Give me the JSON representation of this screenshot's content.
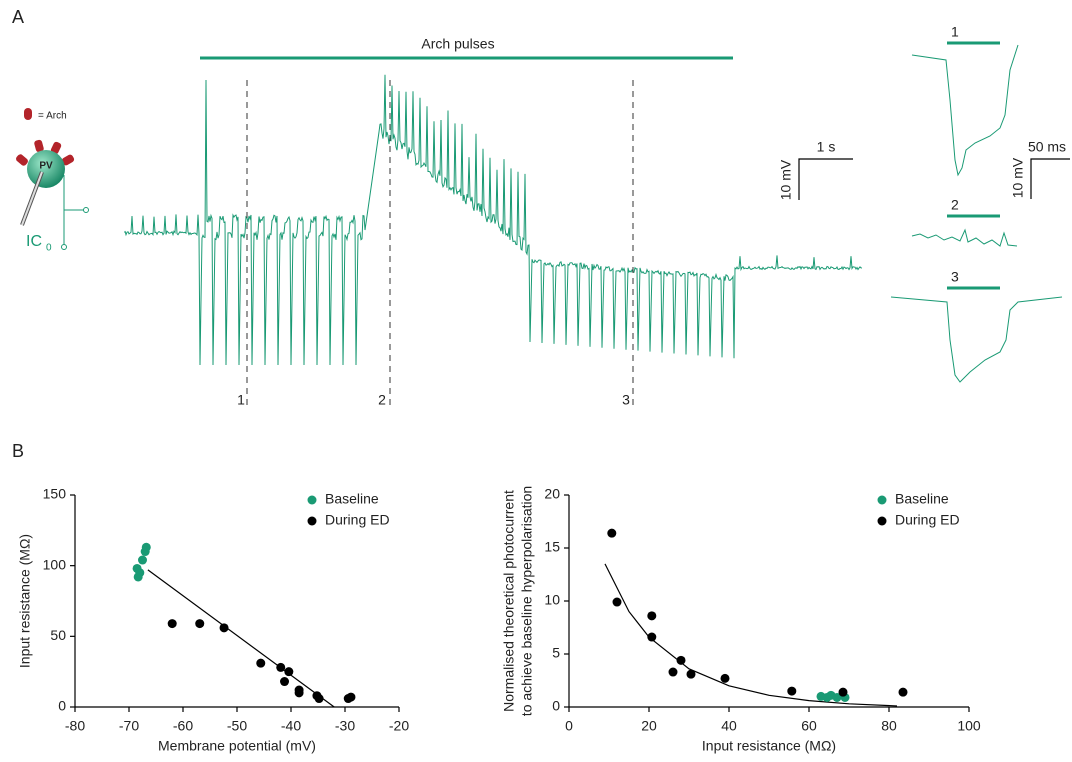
{
  "panel_a": {
    "label": "A",
    "stimulus_label": "Arch pulses",
    "legend_label": "= Arch",
    "cell_label": "PV",
    "recording_mode": "IC",
    "recording_mode_subscript": "0",
    "scale_bar_main": {
      "time": "1 s",
      "voltage": "10 mV"
    },
    "scale_bar_inset": {
      "time": "50 ms",
      "voltage": "10 mV"
    },
    "timepoints": [
      "1",
      "2",
      "3"
    ],
    "inset_labels": [
      "1",
      "2",
      "3"
    ]
  },
  "panel_b_label": "B",
  "chart_data": [
    {
      "type": "scatter",
      "xlabel": "Membrane potential (mV)",
      "ylabel": [
        "Input resistance (MΩ)"
      ],
      "xlim": [
        -80,
        -20
      ],
      "xticks": [
        -80,
        -70,
        -60,
        -50,
        -40,
        -30,
        -20
      ],
      "ylim": [
        0,
        150
      ],
      "yticks": [
        0,
        50,
        100,
        150
      ],
      "legend": "upper right",
      "series": [
        {
          "name": "Baseline",
          "color": "#1a9a74",
          "x": [
            -68.5,
            -68.3,
            -68.0,
            -67.5,
            -67.0,
            -66.8
          ],
          "values": [
            98,
            92,
            95,
            104,
            110,
            113
          ]
        },
        {
          "name": "During ED",
          "color": "#000000",
          "x": [
            -62.0,
            -56.9,
            -52.4,
            -45.6,
            -41.9,
            -41.2,
            -40.4,
            -38.5,
            -38.5,
            -35.2,
            -34.8,
            -29.4,
            -28.9
          ],
          "values": [
            59,
            59,
            56,
            31,
            28,
            18,
            25,
            12,
            10,
            8,
            6,
            6,
            7
          ]
        }
      ],
      "fit": {
        "color": "#000000",
        "x": [
          -66.5,
          -32.0
        ],
        "values": [
          97,
          0
        ]
      }
    },
    {
      "type": "scatter",
      "xlabel": "Input resistance (MΩ)",
      "ylabel": [
        "Normalised theoretical photocurrent",
        "to achieve baseline hyperpolarisation"
      ],
      "xlim": [
        0,
        100
      ],
      "xticks": [
        0,
        20,
        40,
        60,
        80,
        100
      ],
      "ylim": [
        0,
        20
      ],
      "yticks": [
        0,
        5,
        10,
        15,
        20
      ],
      "legend": "upper right",
      "series": [
        {
          "name": "Baseline",
          "color": "#1a9a74",
          "x": [
            63,
            64.5,
            65.5,
            67,
            69
          ],
          "values": [
            1.0,
            0.9,
            1.1,
            0.9,
            0.9
          ]
        },
        {
          "name": "During ED",
          "color": "#000000",
          "x": [
            10.7,
            12,
            20.7,
            20.7,
            28,
            26,
            30.5,
            39,
            55.7,
            68.5,
            83.5
          ],
          "values": [
            16.4,
            9.9,
            8.6,
            6.6,
            4.4,
            3.3,
            3.1,
            2.7,
            1.5,
            1.4,
            1.4
          ]
        }
      ],
      "fit": {
        "color": "#000000",
        "x": [
          9,
          15,
          20,
          30,
          40,
          50,
          60,
          70,
          82
        ],
        "values": [
          13.5,
          9.0,
          6.6,
          3.6,
          2.0,
          1.1,
          0.6,
          0.3,
          0.1
        ]
      }
    }
  ]
}
